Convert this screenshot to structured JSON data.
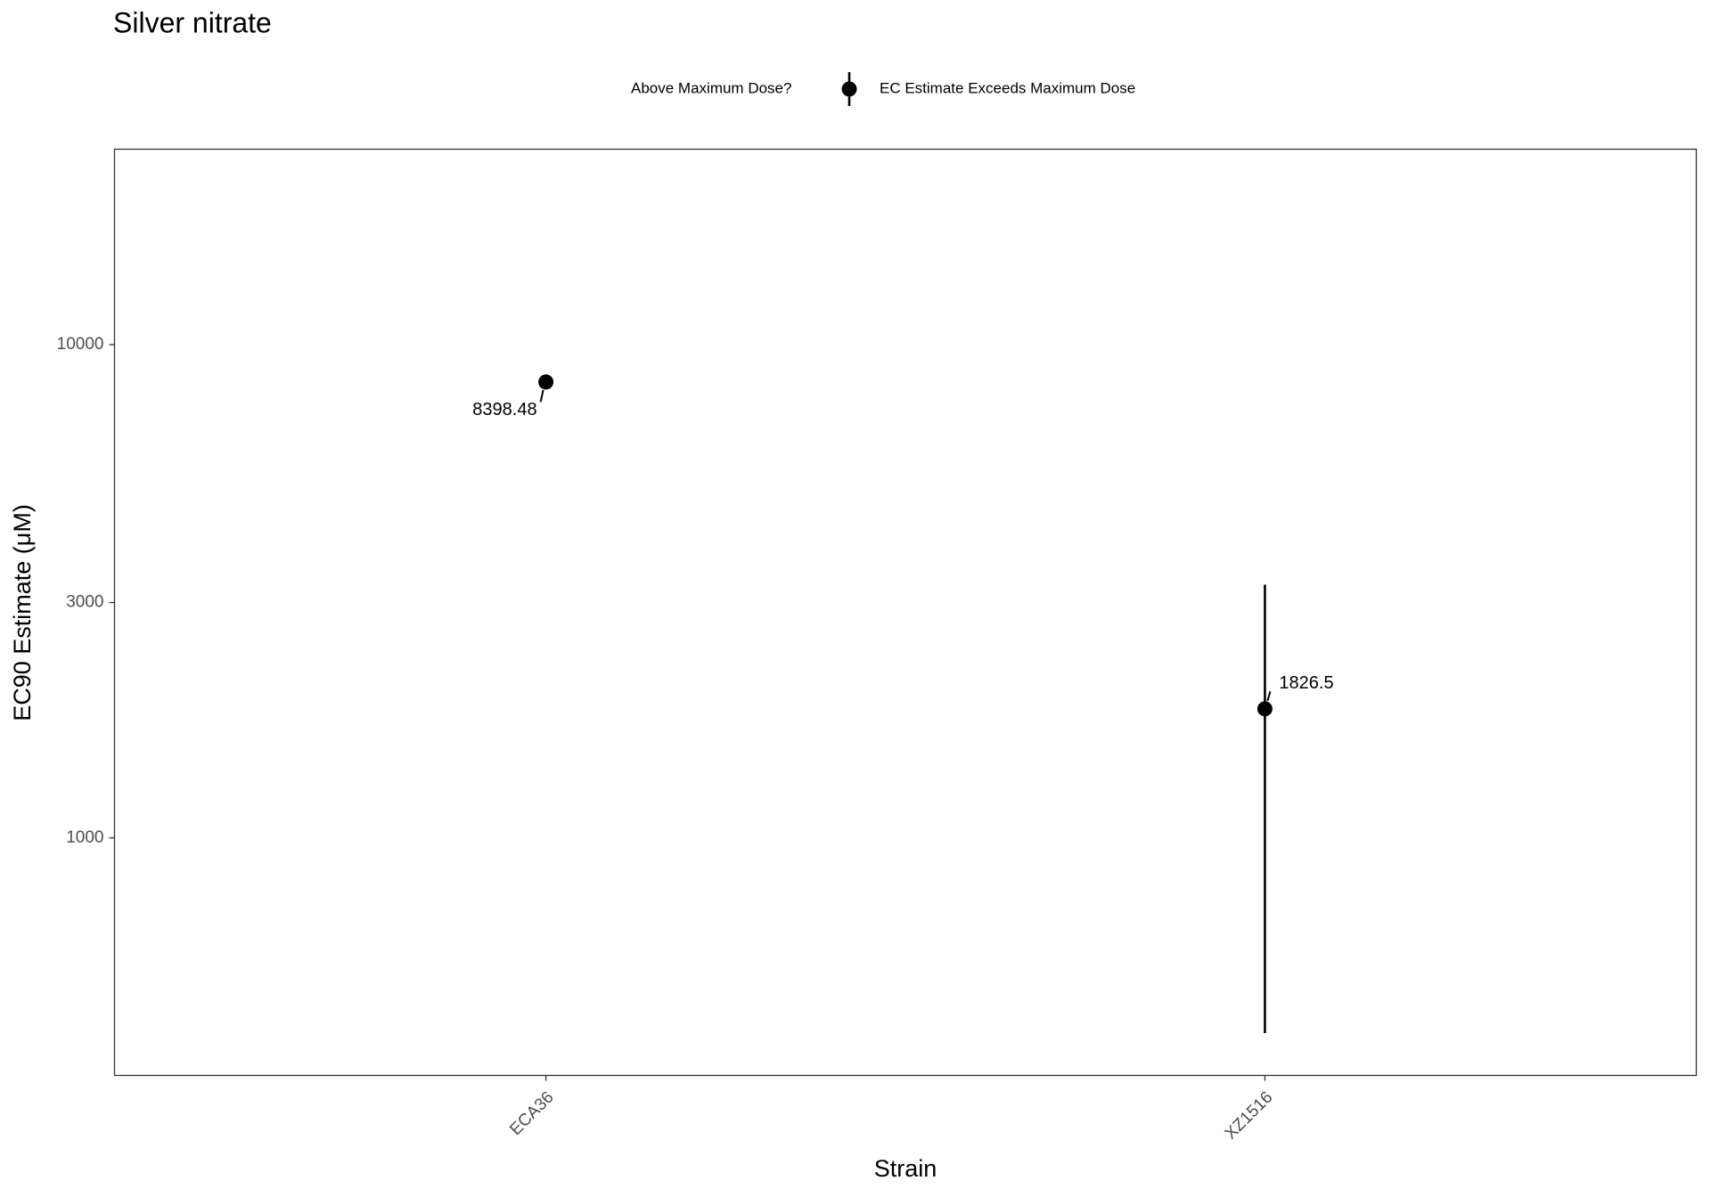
{
  "chart_data": {
    "type": "pointrange",
    "title": "Silver nitrate",
    "x_label": "Strain",
    "y_label": "EC90 Estimate (μM)",
    "categories": [
      "ECA36",
      "XZ1516"
    ],
    "legend_title": "Above Maximum Dose?",
    "series": [
      {
        "name": "EC Estimate Exceeds Maximum Dose",
        "color": "#000000",
        "values": [
          8398.48,
          1826.5
        ],
        "lower": [
          null,
          402
        ],
        "upper": [
          null,
          3260
        ]
      }
    ],
    "log_y": true,
    "ylim": [
      330,
      24900
    ],
    "yticks": [
      1000,
      3000,
      10000
    ],
    "grid": false
  }
}
